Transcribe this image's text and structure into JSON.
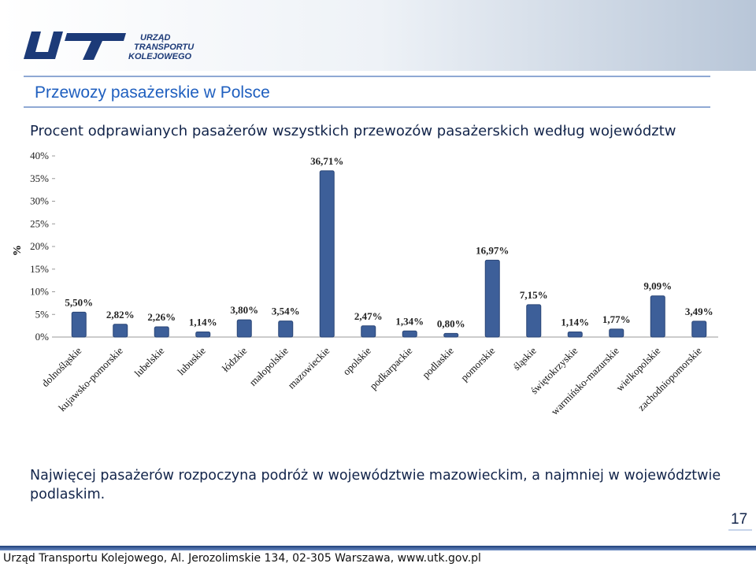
{
  "header": {
    "logo": [
      "URZĄD",
      "TRANSPORTU",
      "KOLEJOWEGO"
    ],
    "title": "Przewozy pasażerskie w Polsce"
  },
  "chart_data": {
    "type": "bar",
    "title": "Procent odprawianych pasażerów wszystkich przewozów pasażerskich według województw",
    "y_label": "%",
    "categories": [
      "dolnośląskie",
      "kujawsko-pomorskie",
      "lubelskie",
      "lubuskie",
      "łódzkie",
      "małopolskie",
      "mazowieckie",
      "opolskie",
      "podkarpackie",
      "podlaskie",
      "pomorskie",
      "śląskie",
      "świętokrzyskie",
      "warmińsko-mazurskie",
      "wielkopolskie",
      "zachodniopomorskie"
    ],
    "values": [
      5.5,
      2.82,
      2.26,
      1.14,
      3.8,
      3.54,
      36.71,
      2.47,
      1.34,
      0.8,
      16.97,
      7.15,
      1.14,
      1.77,
      9.09,
      3.49
    ],
    "value_labels": [
      "5,50%",
      "2,82%",
      "2,26%",
      "1,14%",
      "3,80%",
      "3,54%",
      "36,71%",
      "2,47%",
      "1,34%",
      "0,80%",
      "16,97%",
      "7,15%",
      "1,14%",
      "1,77%",
      "9,09%",
      "3,49%"
    ],
    "color": "#3d5f99",
    "ylim": [
      0,
      40
    ],
    "yticks": [
      {
        "value": 0,
        "label": "0%"
      },
      {
        "value": 5,
        "label": "5%"
      },
      {
        "value": 10,
        "label": "10%"
      },
      {
        "value": 15,
        "label": "15%"
      },
      {
        "value": 20,
        "label": "20%"
      },
      {
        "value": 25,
        "label": "25%"
      },
      {
        "value": 30,
        "label": "30%"
      },
      {
        "value": 35,
        "label": "35%"
      },
      {
        "value": 40,
        "label": "40%"
      }
    ],
    "grid": false
  },
  "conclusion": "Najwięcej pasażerów rozpoczyna podróż w województwie mazowieckim, a najmniej w województwie podlaskim.",
  "page_number": 17,
  "footer": "Urząd Transportu Kolejowego, Al. Jerozolimskie 134, 02-305 Warszawa, www.utk.gov.pl"
}
